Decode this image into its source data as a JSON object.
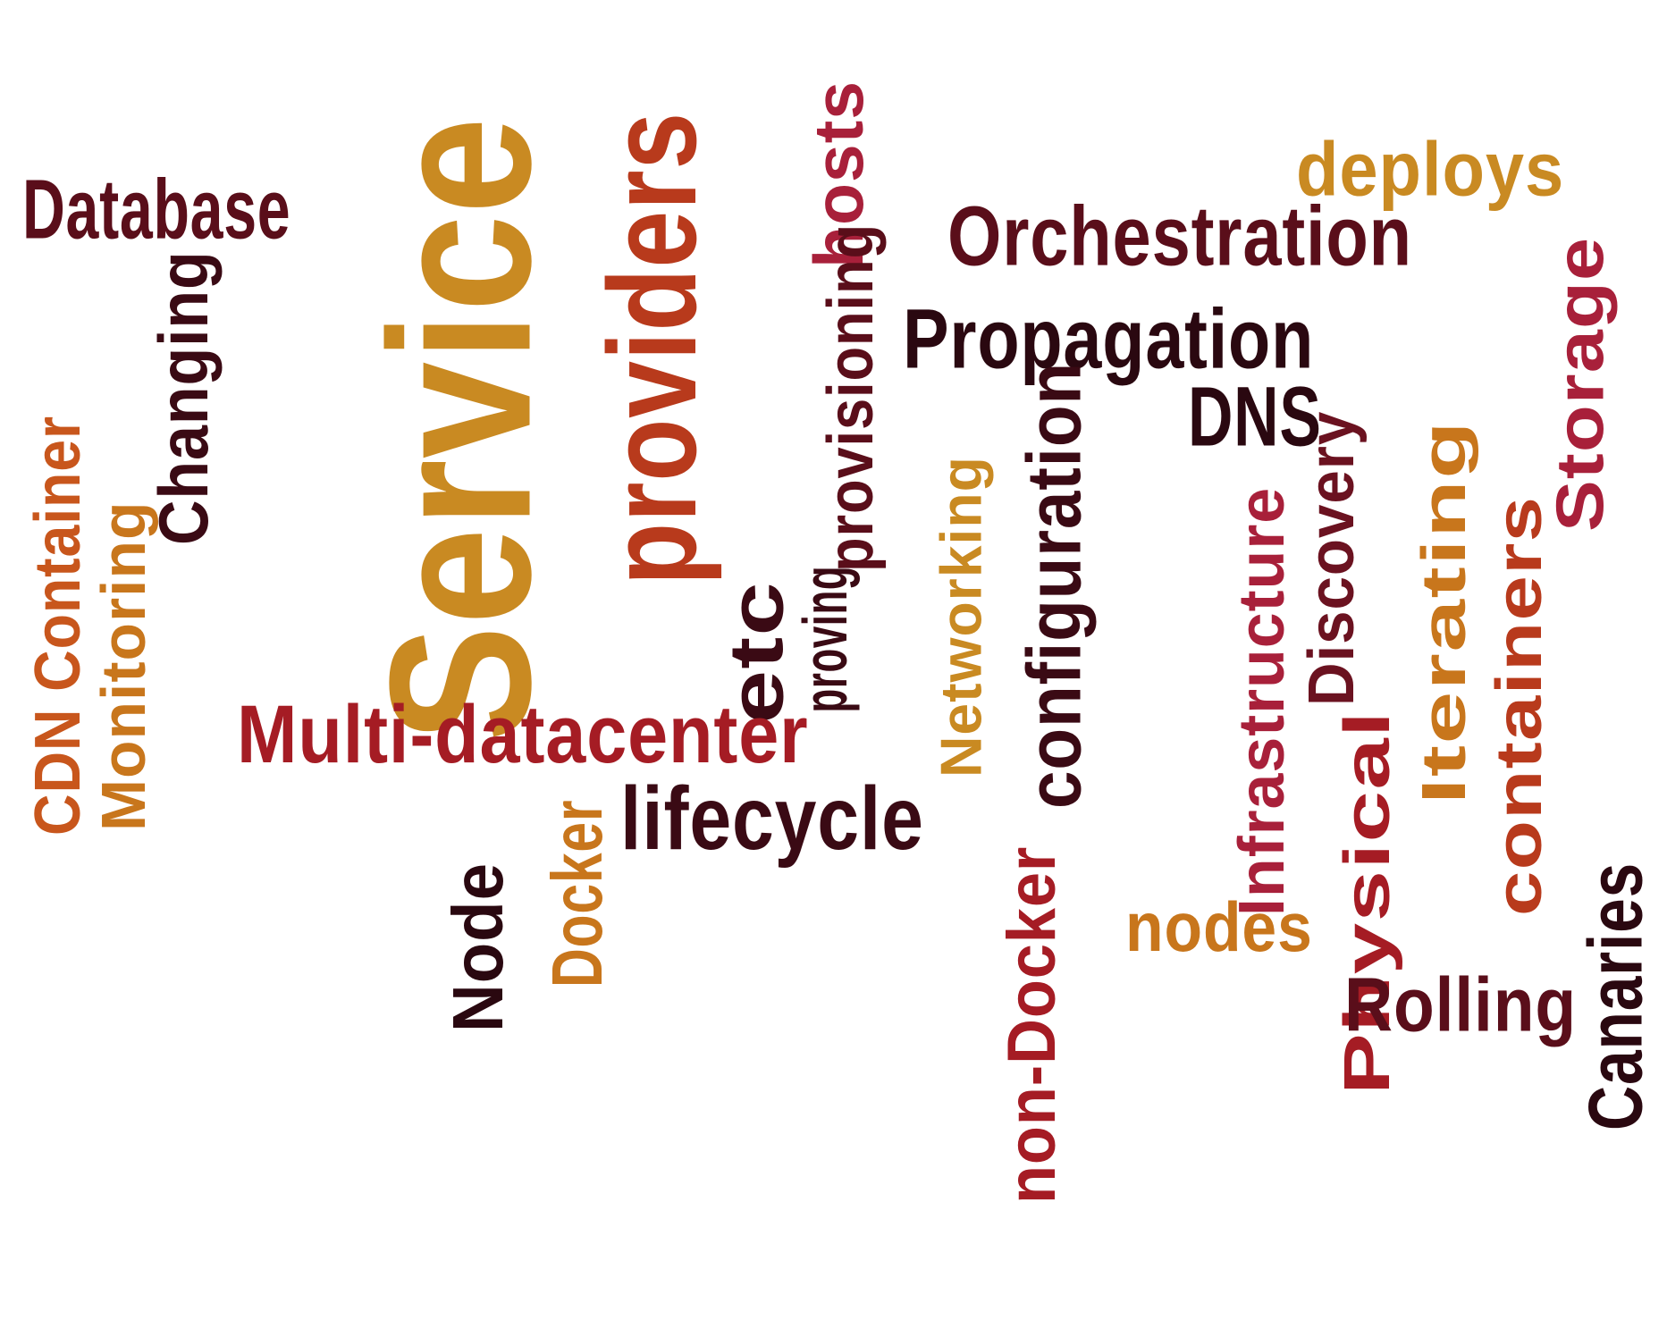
{
  "palette": {
    "dark_maroon": "#3a0a14",
    "maroon": "#6b1220",
    "red": "#a51c24",
    "rust": "#b83a1c",
    "orange": "#c8761c",
    "gold": "#c98a22",
    "crimson": "#a8203a"
  },
  "words": [
    {
      "text": "Service",
      "color": "#c98a22"
    },
    {
      "text": "providers",
      "color": "#b83a1c"
    },
    {
      "text": "Database",
      "color": "#5a0e1a"
    },
    {
      "text": "Changing",
      "color": "#3a0a14"
    },
    {
      "text": "Monitoring",
      "color": "#c8761c"
    },
    {
      "text": "CDN Container",
      "color": "#c8561c"
    },
    {
      "text": "hosts",
      "color": "#a8203a"
    },
    {
      "text": "provisioning",
      "color": "#5a0e1a"
    },
    {
      "text": "proving",
      "color": "#3a0a14"
    },
    {
      "text": "etc",
      "color": "#3a0a14"
    },
    {
      "text": "deploys",
      "color": "#c98a22"
    },
    {
      "text": "Orchestration",
      "color": "#5a0e1a"
    },
    {
      "text": "Propagation",
      "color": "#2a0810"
    },
    {
      "text": "DNS",
      "color": "#2a0810"
    },
    {
      "text": "Multi-datacenter",
      "color": "#a51c24"
    },
    {
      "text": "Networking",
      "color": "#c98a22"
    },
    {
      "text": "configuration",
      "color": "#3a0a14"
    },
    {
      "text": "non-Docker",
      "color": "#a51c24"
    },
    {
      "text": "Infrastructure",
      "color": "#a8203a"
    },
    {
      "text": "Discovery",
      "color": "#6b1220"
    },
    {
      "text": "Iterating",
      "color": "#c8761c"
    },
    {
      "text": "Physical",
      "color": "#a51c24"
    },
    {
      "text": "containers",
      "color": "#b83a1c"
    },
    {
      "text": "Storage",
      "color": "#a8203a"
    },
    {
      "text": "Canaries",
      "color": "#2a0810"
    },
    {
      "text": "Rolling",
      "color": "#5a0e1a"
    },
    {
      "text": "nodes",
      "color": "#c8761c"
    },
    {
      "text": "lifecycle",
      "color": "#3a0a14"
    },
    {
      "text": "Docker",
      "color": "#c8761c"
    },
    {
      "text": "Node",
      "color": "#2a0810"
    }
  ]
}
